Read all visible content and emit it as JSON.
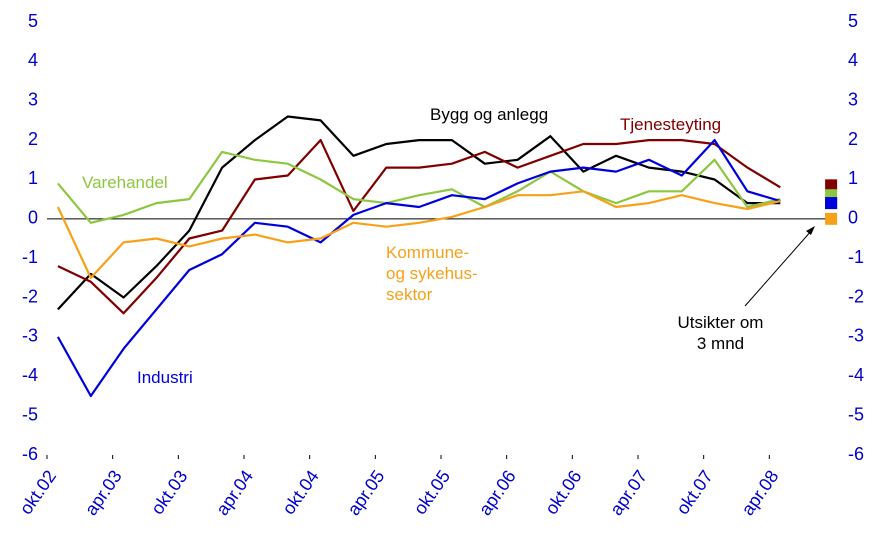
{
  "chart_data": {
    "type": "line",
    "x": [
      1,
      4,
      7,
      10,
      13,
      16,
      19,
      22,
      25,
      28,
      31,
      34,
      37,
      40,
      43,
      46,
      49,
      52,
      55,
      58,
      61,
      64,
      67
    ],
    "xlim": [
      0,
      72
    ],
    "xticks": [
      {
        "value": 0,
        "label": "okt.02"
      },
      {
        "value": 6,
        "label": "apr.03"
      },
      {
        "value": 12,
        "label": "okt.03"
      },
      {
        "value": 18,
        "label": "apr.04"
      },
      {
        "value": 24,
        "label": "okt.04"
      },
      {
        "value": 30,
        "label": "apr.05"
      },
      {
        "value": 36,
        "label": "okt.05"
      },
      {
        "value": 42,
        "label": "apr.06"
      },
      {
        "value": 48,
        "label": "okt.06"
      },
      {
        "value": 54,
        "label": "apr.07"
      },
      {
        "value": 60,
        "label": "okt.07"
      },
      {
        "value": 66,
        "label": "apr.08"
      }
    ],
    "ylim": [
      -6,
      5
    ],
    "yticks": [
      -6,
      -5,
      -4,
      -3,
      -2,
      -1,
      0,
      1,
      2,
      3,
      4,
      5
    ],
    "y2lim": [
      -6,
      5
    ],
    "y2ticks": [
      -6,
      -5,
      -4,
      -3,
      -2,
      -1,
      0,
      1,
      2,
      3,
      4,
      5
    ],
    "outlook_x": 70,
    "annotation": "Utsikter om\n3 mnd",
    "series": [
      {
        "name": "Bygg og anlegg",
        "color": "#000000",
        "values": [
          -2.3,
          -1.4,
          -2,
          -1.2,
          -0.3,
          1.3,
          2.0,
          2.6,
          2.5,
          1.6,
          1.9,
          2.0,
          2.0,
          1.4,
          1.5,
          2.1,
          1.2,
          1.6,
          1.3,
          1.2,
          1.0,
          0.4,
          0.4
        ],
        "outlook": 0.4
      },
      {
        "name": "Tjenesteyting",
        "color": "#800000",
        "values": [
          -1.2,
          -1.6,
          -2.4,
          -1.5,
          -0.5,
          -0.3,
          1.0,
          1.1,
          2.0,
          0.2,
          1.3,
          1.3,
          1.4,
          1.7,
          1.3,
          1.6,
          1.9,
          1.9,
          2.0,
          2.0,
          1.9,
          1.3,
          0.8
        ],
        "outlook": 0.85
      },
      {
        "name": "Varehandel",
        "color": "#8dc63f",
        "values": [
          0.9,
          -0.1,
          0.1,
          0.4,
          0.5,
          1.7,
          1.5,
          1.4,
          1.0,
          0.5,
          0.4,
          0.6,
          0.75,
          0.3,
          0.7,
          1.2,
          0.7,
          0.4,
          0.7,
          0.7,
          1.5,
          0.3,
          0.5
        ],
        "outlook": 0.6
      },
      {
        "name": "Industri",
        "color": "#0000dd",
        "values": [
          -3.0,
          -4.5,
          -3.3,
          -2.3,
          -1.3,
          -0.9,
          -0.1,
          -0.2,
          -0.6,
          0.1,
          0.4,
          0.3,
          0.6,
          0.5,
          0.9,
          1.2,
          1.3,
          1.2,
          1.5,
          1.1,
          2.0,
          0.7,
          0.45
        ],
        "outlook": 0.4
      },
      {
        "name": "Kommune-\nog sykehus-\nsektor",
        "color": "#f7a11a",
        "values": [
          0.3,
          -1.5,
          -0.6,
          -0.5,
          -0.7,
          -0.5,
          -0.4,
          -0.6,
          -0.5,
          -0.1,
          -0.2,
          -0.1,
          0.05,
          0.3,
          0.6,
          0.6,
          0.7,
          0.3,
          0.4,
          0.6,
          0.4,
          0.25,
          0.45
        ],
        "outlook": 0
      }
    ]
  }
}
